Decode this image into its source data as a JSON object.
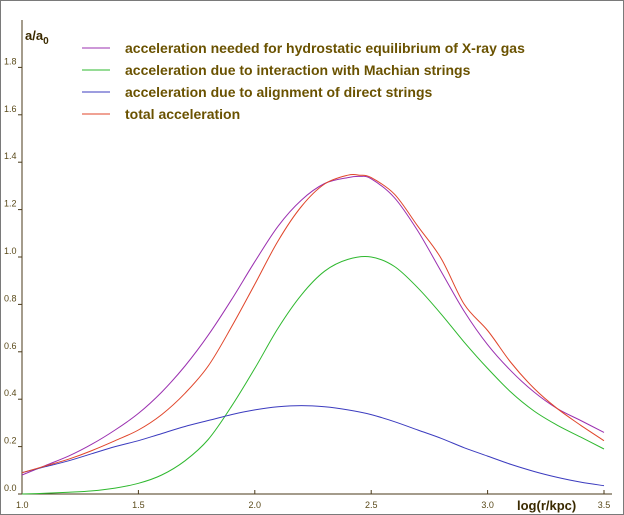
{
  "chart_data": {
    "type": "line",
    "ylabel": "a/a",
    "ylabel_sub": "0",
    "xlabel": "log(r/kpc)",
    "xlim": [
      1.0,
      3.5
    ],
    "ylim": [
      0.0,
      2.0
    ],
    "x_ticks": [
      "1.0",
      "1.5",
      "2.0",
      "2.5",
      "3.0",
      "3.5"
    ],
    "y_ticks": [
      "0.0",
      "0.2",
      "0.4",
      "0.6",
      "0.8",
      "1.0",
      "1.2",
      "1.4",
      "1.6",
      "1.8"
    ],
    "grid": false,
    "legend_position": "top",
    "series": [
      {
        "name": "acceleration needed for hydrostatic equilibrium of X-ray gas",
        "color": "#9b30b0",
        "x": [
          1.0,
          1.1,
          1.2,
          1.3,
          1.4,
          1.5,
          1.6,
          1.7,
          1.8,
          1.9,
          2.0,
          2.1,
          2.2,
          2.3,
          2.4,
          2.45,
          2.5,
          2.6,
          2.7,
          2.8,
          2.9,
          3.0,
          3.1,
          3.2,
          3.3,
          3.4,
          3.5
        ],
        "y": [
          0.08,
          0.12,
          0.16,
          0.21,
          0.27,
          0.34,
          0.43,
          0.54,
          0.67,
          0.82,
          0.98,
          1.13,
          1.24,
          1.31,
          1.335,
          1.34,
          1.33,
          1.25,
          1.11,
          0.94,
          0.77,
          0.63,
          0.52,
          0.43,
          0.36,
          0.31,
          0.26
        ]
      },
      {
        "name": "acceleration due to interaction with Machian strings",
        "color": "#2eb82e",
        "x": [
          1.0,
          1.1,
          1.2,
          1.3,
          1.4,
          1.5,
          1.6,
          1.7,
          1.8,
          1.9,
          2.0,
          2.1,
          2.2,
          2.3,
          2.4,
          2.5,
          2.6,
          2.7,
          2.8,
          2.9,
          3.0,
          3.1,
          3.2,
          3.3,
          3.4,
          3.5
        ],
        "y": [
          0.0,
          0.003,
          0.007,
          0.013,
          0.025,
          0.045,
          0.08,
          0.14,
          0.23,
          0.37,
          0.53,
          0.7,
          0.84,
          0.94,
          0.99,
          1.0,
          0.96,
          0.87,
          0.76,
          0.64,
          0.53,
          0.43,
          0.35,
          0.29,
          0.24,
          0.19
        ]
      },
      {
        "name": "acceleration due to alignment of direct strings",
        "color": "#3b3bbf",
        "x": [
          1.0,
          1.1,
          1.2,
          1.3,
          1.4,
          1.5,
          1.6,
          1.7,
          1.8,
          1.9,
          2.0,
          2.1,
          2.2,
          2.3,
          2.4,
          2.5,
          2.6,
          2.7,
          2.8,
          2.9,
          3.0,
          3.1,
          3.2,
          3.3,
          3.4,
          3.5
        ],
        "y": [
          0.09,
          0.115,
          0.14,
          0.17,
          0.2,
          0.225,
          0.255,
          0.285,
          0.31,
          0.335,
          0.355,
          0.368,
          0.373,
          0.368,
          0.355,
          0.335,
          0.305,
          0.27,
          0.235,
          0.195,
          0.16,
          0.125,
          0.095,
          0.07,
          0.05,
          0.035
        ]
      },
      {
        "name": "total acceleration",
        "color": "#e0452a",
        "x": [
          1.0,
          1.1,
          1.2,
          1.3,
          1.4,
          1.5,
          1.6,
          1.7,
          1.8,
          1.9,
          2.0,
          2.1,
          2.2,
          2.3,
          2.4,
          2.45,
          2.5,
          2.6,
          2.7,
          2.8,
          2.9,
          3.0,
          3.1,
          3.2,
          3.3,
          3.4,
          3.5
        ],
        "y": [
          0.09,
          0.118,
          0.147,
          0.183,
          0.225,
          0.27,
          0.335,
          0.425,
          0.54,
          0.705,
          0.885,
          1.068,
          1.213,
          1.308,
          1.345,
          1.345,
          1.335,
          1.265,
          1.13,
          0.995,
          0.8,
          0.69,
          0.555,
          0.445,
          0.36,
          0.29,
          0.225
        ]
      }
    ]
  }
}
